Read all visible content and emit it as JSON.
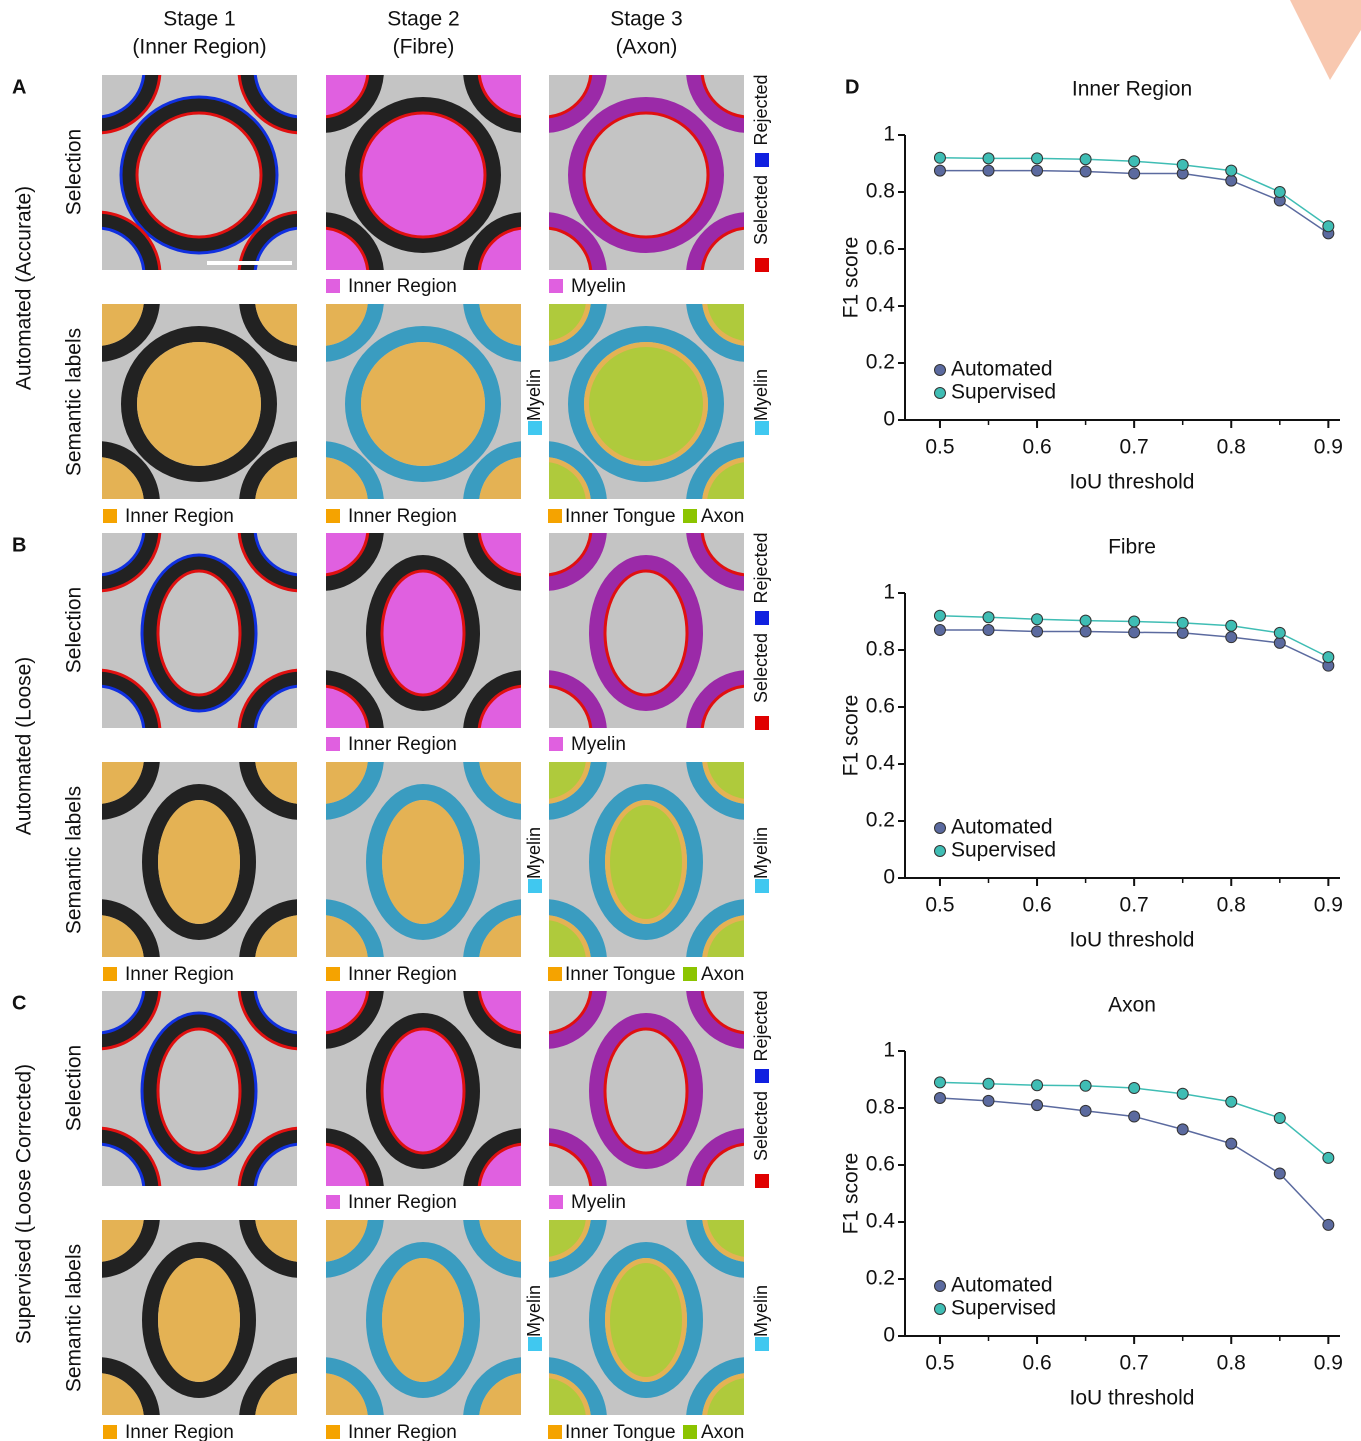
{
  "columns": [
    [
      "Stage 1",
      "(Inner Region)"
    ],
    [
      "Stage 2",
      "(Fibre)"
    ],
    [
      "Stage 3",
      "(Axon)"
    ]
  ],
  "panels": [
    {
      "letter": "A",
      "group": "Automated (Accurate)",
      "selection": {
        "label": "Selection",
        "legends": [
          "Inner Region",
          "Myelin"
        ],
        "side": [
          "Selected",
          "Rejected"
        ]
      },
      "semantic": {
        "label": "Semantic labels",
        "legends": [
          "Inner Region",
          "Inner Region",
          "Inner Tongue",
          "Axon"
        ],
        "side": [
          "Myelin",
          "Myelin"
        ]
      }
    },
    {
      "letter": "B",
      "group": "Automated (Loose)",
      "selection": {
        "label": "Selection",
        "legends": [
          "Inner Region",
          "Myelin"
        ],
        "side": [
          "Selected",
          "Rejected"
        ]
      },
      "semantic": {
        "label": "Semantic labels",
        "legends": [
          "Inner Region",
          "Inner Region",
          "Inner Tongue",
          "Axon"
        ],
        "side": [
          "Myelin",
          "Myelin"
        ]
      }
    },
    {
      "letter": "C",
      "group": "Supervised (Loose Corrected)",
      "selection": {
        "label": "Selection",
        "legends": [
          "Inner Region",
          "Myelin"
        ],
        "side": [
          "Selected",
          "Rejected"
        ]
      },
      "semantic": {
        "label": "Semantic labels",
        "legends": [
          "Inner Region",
          "Inner Region",
          "Inner Tongue",
          "Axon"
        ],
        "side": [
          "Myelin",
          "Myelin"
        ]
      }
    }
  ],
  "chart_letter": "D",
  "chart_data": [
    {
      "type": "line",
      "title": "Inner Region",
      "x_label": "IoU threshold",
      "y_label": "F1 score",
      "x": [
        0.5,
        0.55,
        0.6,
        0.65,
        0.7,
        0.75,
        0.8,
        0.85,
        0.9
      ],
      "series": [
        {
          "name": "Automated",
          "color": "#5b6a9f",
          "values": [
            0.875,
            0.875,
            0.875,
            0.872,
            0.865,
            0.865,
            0.84,
            0.77,
            0.655
          ]
        },
        {
          "name": "Supervised",
          "color": "#3fbdb4",
          "values": [
            0.92,
            0.918,
            0.918,
            0.915,
            0.908,
            0.895,
            0.875,
            0.8,
            0.68
          ]
        }
      ],
      "xlim": [
        0.464,
        0.912
      ],
      "ylim": [
        0,
        1
      ],
      "xticks": [
        0.5,
        0.6,
        0.7,
        0.8,
        0.9
      ],
      "yticks": [
        0,
        0.2,
        0.4,
        0.6,
        0.8,
        1
      ],
      "legend": "lower left"
    },
    {
      "type": "line",
      "title": "Fibre",
      "x_label": "IoU threshold",
      "y_label": "F1 score",
      "x": [
        0.5,
        0.55,
        0.6,
        0.65,
        0.7,
        0.75,
        0.8,
        0.85,
        0.9
      ],
      "series": [
        {
          "name": "Automated",
          "color": "#5b6a9f",
          "values": [
            0.87,
            0.87,
            0.865,
            0.865,
            0.862,
            0.86,
            0.845,
            0.825,
            0.745
          ]
        },
        {
          "name": "Supervised",
          "color": "#3fbdb4",
          "values": [
            0.92,
            0.915,
            0.908,
            0.903,
            0.9,
            0.895,
            0.885,
            0.86,
            0.775
          ]
        }
      ],
      "xlim": [
        0.464,
        0.912
      ],
      "ylim": [
        0,
        1
      ],
      "xticks": [
        0.5,
        0.6,
        0.7,
        0.8,
        0.9
      ],
      "yticks": [
        0,
        0.2,
        0.4,
        0.6,
        0.8,
        1
      ],
      "legend": "lower left"
    },
    {
      "type": "line",
      "title": "Axon",
      "x_label": "IoU threshold",
      "y_label": "F1 score",
      "x": [
        0.5,
        0.55,
        0.6,
        0.65,
        0.7,
        0.75,
        0.8,
        0.85,
        0.9
      ],
      "series": [
        {
          "name": "Automated",
          "color": "#5b6a9f",
          "values": [
            0.835,
            0.825,
            0.81,
            0.79,
            0.77,
            0.725,
            0.675,
            0.57,
            0.39
          ]
        },
        {
          "name": "Supervised",
          "color": "#3fbdb4",
          "values": [
            0.89,
            0.885,
            0.88,
            0.878,
            0.87,
            0.85,
            0.822,
            0.765,
            0.625
          ]
        }
      ],
      "xlim": [
        0.464,
        0.912
      ],
      "ylim": [
        0,
        1
      ],
      "xticks": [
        0.5,
        0.6,
        0.7,
        0.8,
        0.9
      ],
      "yticks": [
        0,
        0.2,
        0.4,
        0.6,
        0.8,
        1
      ],
      "legend": "lower left"
    }
  ]
}
